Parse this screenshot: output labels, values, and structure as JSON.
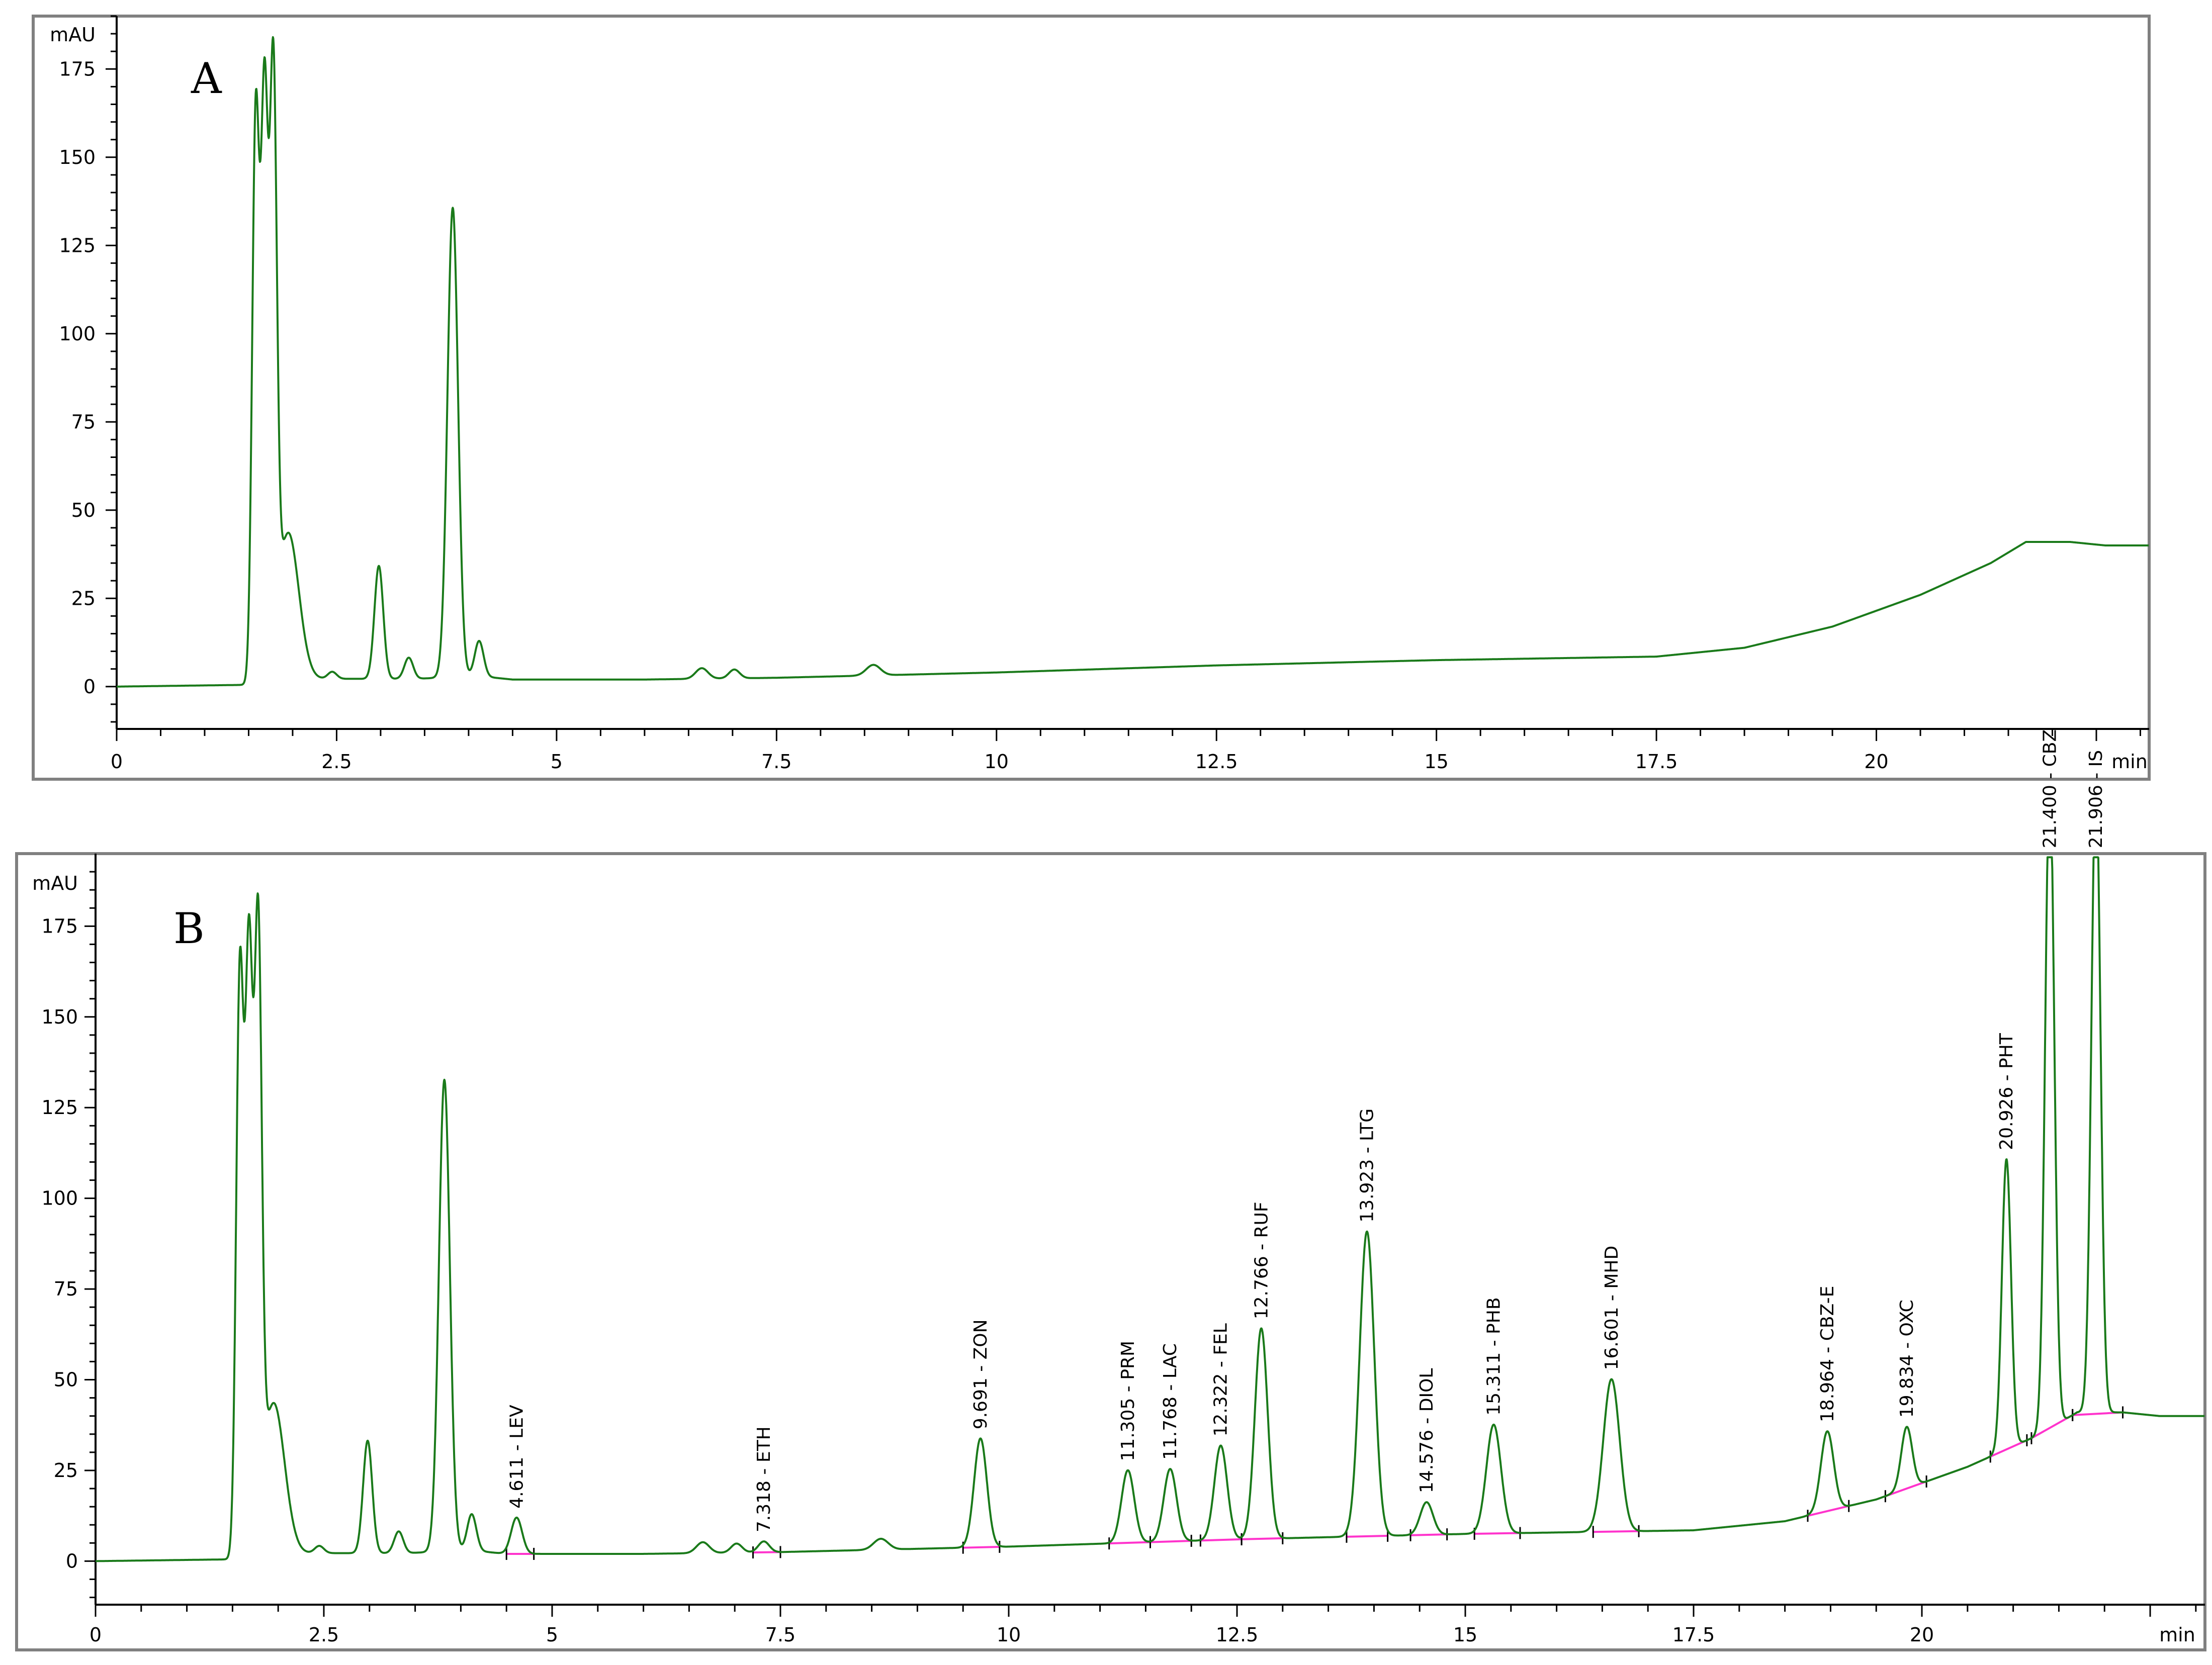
{
  "colors": {
    "trace": "#1a7a1a",
    "baseline": "#ff33cc",
    "frame": "#808080",
    "axis": "#000000"
  },
  "chart_data": [
    {
      "type": "line",
      "panel_label": "A",
      "ylabel": "mAU",
      "xlabel": "min",
      "xlim": [
        0,
        23.1
      ],
      "ylim": [
        -12,
        190
      ],
      "x_ticks": [
        0,
        2.5,
        5,
        7.5,
        10,
        12.5,
        15,
        17.5,
        20
      ],
      "x_tick_labels": [
        "0",
        "2.5",
        "5",
        "7.5",
        "10",
        "12.5",
        "15",
        "17.5",
        "20"
      ],
      "y_ticks": [
        0,
        25,
        50,
        75,
        100,
        125,
        150,
        175
      ],
      "y_tick_labels": [
        "0",
        "25",
        "50",
        "75",
        "100",
        "125",
        "150",
        "175"
      ],
      "grid": false,
      "baseline_points": [
        [
          0,
          0
        ],
        [
          1.5,
          0.5
        ],
        [
          2.2,
          2.2
        ],
        [
          3.4,
          2.2
        ],
        [
          4.1,
          3
        ],
        [
          4.5,
          2
        ],
        [
          6,
          2
        ],
        [
          7.5,
          2.5
        ],
        [
          10,
          4
        ],
        [
          12.5,
          6
        ],
        [
          15,
          7.5
        ],
        [
          17.5,
          8.5
        ],
        [
          18.5,
          11
        ],
        [
          19.5,
          17
        ],
        [
          20.5,
          26
        ],
        [
          21.3,
          35
        ],
        [
          21.7,
          41
        ],
        [
          22.2,
          41
        ],
        [
          22.6,
          40
        ],
        [
          23,
          40
        ]
      ],
      "peaks": [
        {
          "rt": 1.58,
          "height": 160,
          "width": 0.04
        },
        {
          "rt": 1.68,
          "height": 160,
          "width": 0.04
        },
        {
          "rt": 1.78,
          "height": 160,
          "width": 0.04
        },
        {
          "rt": 1.95,
          "height": 42,
          "width": 0.12
        },
        {
          "rt": 2.45,
          "height": 2,
          "width": 0.05
        },
        {
          "rt": 2.98,
          "height": 32,
          "width": 0.05
        },
        {
          "rt": 3.32,
          "height": 6,
          "width": 0.05
        },
        {
          "rt": 3.82,
          "height": 133,
          "width": 0.06
        },
        {
          "rt": 4.12,
          "height": 10,
          "width": 0.05
        },
        {
          "rt": 6.65,
          "height": 3,
          "width": 0.07
        },
        {
          "rt": 7.02,
          "height": 2.5,
          "width": 0.06
        },
        {
          "rt": 8.6,
          "height": 3,
          "width": 0.08
        }
      ]
    },
    {
      "type": "line",
      "panel_label": "B",
      "ylabel": "mAU",
      "xlabel": "min",
      "xlim": [
        0,
        23.1
      ],
      "ylim": [
        -12,
        195
      ],
      "x_ticks": [
        0,
        2.5,
        5,
        7.5,
        10,
        12.5,
        15,
        17.5,
        20
      ],
      "x_tick_labels": [
        "0",
        "2.5",
        "5",
        "7.5",
        "10",
        "12.5",
        "15",
        "17.5",
        "20"
      ],
      "y_ticks": [
        0,
        25,
        50,
        75,
        100,
        125,
        150,
        175
      ],
      "y_tick_labels": [
        "0",
        "25",
        "50",
        "75",
        "100",
        "125",
        "150",
        "175"
      ],
      "grid": false,
      "baseline_points": [
        [
          0,
          0
        ],
        [
          1.5,
          0.5
        ],
        [
          2.2,
          2.2
        ],
        [
          3.4,
          2.2
        ],
        [
          4.1,
          3
        ],
        [
          4.5,
          2
        ],
        [
          6,
          2
        ],
        [
          7.5,
          2.5
        ],
        [
          10,
          4
        ],
        [
          12.5,
          6
        ],
        [
          15,
          7.5
        ],
        [
          17.5,
          8.5
        ],
        [
          18.5,
          11
        ],
        [
          19.5,
          17
        ],
        [
          20.5,
          26
        ],
        [
          21.3,
          35
        ],
        [
          21.7,
          41
        ],
        [
          22.2,
          41
        ],
        [
          22.6,
          40
        ],
        [
          23,
          40
        ]
      ],
      "peaks": [
        {
          "rt": 1.58,
          "height": 160,
          "width": 0.04
        },
        {
          "rt": 1.68,
          "height": 160,
          "width": 0.04
        },
        {
          "rt": 1.78,
          "height": 160,
          "width": 0.04
        },
        {
          "rt": 1.95,
          "height": 42,
          "width": 0.12
        },
        {
          "rt": 2.45,
          "height": 2,
          "width": 0.05
        },
        {
          "rt": 2.98,
          "height": 31,
          "width": 0.05
        },
        {
          "rt": 3.32,
          "height": 6,
          "width": 0.05
        },
        {
          "rt": 3.82,
          "height": 130,
          "width": 0.06
        },
        {
          "rt": 4.12,
          "height": 10,
          "width": 0.05
        },
        {
          "rt": 6.65,
          "height": 3,
          "width": 0.07
        },
        {
          "rt": 7.02,
          "height": 2.5,
          "width": 0.06
        },
        {
          "rt": 8.6,
          "height": 3,
          "width": 0.08
        },
        {
          "rt": 4.611,
          "height": 10,
          "width": 0.06
        },
        {
          "rt": 7.318,
          "height": 3,
          "width": 0.06
        },
        {
          "rt": 9.691,
          "height": 30,
          "width": 0.07
        },
        {
          "rt": 11.305,
          "height": 20,
          "width": 0.07
        },
        {
          "rt": 11.768,
          "height": 20,
          "width": 0.07
        },
        {
          "rt": 12.322,
          "height": 26,
          "width": 0.07
        },
        {
          "rt": 12.766,
          "height": 58,
          "width": 0.07
        },
        {
          "rt": 13.923,
          "height": 84,
          "width": 0.08
        },
        {
          "rt": 14.576,
          "height": 9,
          "width": 0.07
        },
        {
          "rt": 15.311,
          "height": 30,
          "width": 0.08
        },
        {
          "rt": 16.601,
          "height": 42,
          "width": 0.09
        },
        {
          "rt": 18.964,
          "height": 22,
          "width": 0.07
        },
        {
          "rt": 19.834,
          "height": 17,
          "width": 0.06
        },
        {
          "rt": 20.926,
          "height": 80,
          "width": 0.05
        },
        {
          "rt": 21.4,
          "height": 180,
          "width": 0.05
        },
        {
          "rt": 21.906,
          "height": 175,
          "width": 0.05
        }
      ],
      "annotations": [
        {
          "rt": 4.611,
          "text": "4.611 - LEV"
        },
        {
          "rt": 7.318,
          "text": "7.318 - ETH"
        },
        {
          "rt": 9.691,
          "text": "9.691 - ZON"
        },
        {
          "rt": 11.305,
          "text": "11.305 - PRM"
        },
        {
          "rt": 11.768,
          "text": "11.768 - LAC"
        },
        {
          "rt": 12.322,
          "text": "12.322 - FEL"
        },
        {
          "rt": 12.766,
          "text": "12.766 - RUF"
        },
        {
          "rt": 13.923,
          "text": "13.923 - LTG"
        },
        {
          "rt": 14.576,
          "text": "14.576 - DIOL"
        },
        {
          "rt": 15.311,
          "text": "15.311 - PHB"
        },
        {
          "rt": 16.601,
          "text": "16.601 - MHD"
        },
        {
          "rt": 18.964,
          "text": "18.964 - CBZ-E"
        },
        {
          "rt": 19.834,
          "text": "19.834 - OXC"
        },
        {
          "rt": 20.926,
          "text": "20.926 - PHT"
        },
        {
          "rt": 21.4,
          "text": "21.400 - CBZ"
        },
        {
          "rt": 21.906,
          "text": "21.906 - IS"
        }
      ],
      "integration_baselines": [
        [
          4.5,
          4.8
        ],
        [
          7.2,
          7.5
        ],
        [
          9.5,
          9.9
        ],
        [
          11.1,
          11.55
        ],
        [
          11.55,
          12.0
        ],
        [
          12.1,
          12.55
        ],
        [
          12.55,
          13.0
        ],
        [
          13.7,
          14.15
        ],
        [
          14.4,
          14.8
        ],
        [
          15.1,
          15.6
        ],
        [
          16.4,
          16.9
        ],
        [
          18.75,
          19.2
        ],
        [
          19.6,
          20.05
        ],
        [
          20.75,
          21.15
        ],
        [
          21.2,
          21.65
        ],
        [
          21.65,
          22.2
        ]
      ]
    }
  ]
}
